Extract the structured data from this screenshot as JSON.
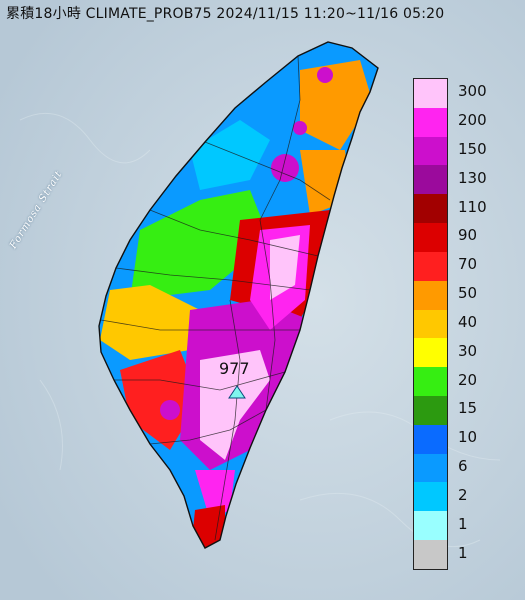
{
  "title": "累積18小時 CLIMATE_PROB75 2024/11/15 11:20~11/16 05:20",
  "strait_label": "Formosa Strait",
  "max_station": {
    "value": "977",
    "marker": "triangle-icon",
    "marker_color": "#7ff5ee"
  },
  "legend": [
    {
      "label": "300",
      "color": "#ffc4fa"
    },
    {
      "label": "200",
      "color": "#ff24f0"
    },
    {
      "label": "150",
      "color": "#cc0fcc"
    },
    {
      "label": "130",
      "color": "#9b0a9c"
    },
    {
      "label": "110",
      "color": "#a20000"
    },
    {
      "label": "90",
      "color": "#dc0000"
    },
    {
      "label": "70",
      "color": "#ff1f1f"
    },
    {
      "label": "50",
      "color": "#ff9a00"
    },
    {
      "label": "40",
      "color": "#ffc800"
    },
    {
      "label": "30",
      "color": "#ffff00"
    },
    {
      "label": "20",
      "color": "#36ee12"
    },
    {
      "label": "15",
      "color": "#2c9a10"
    },
    {
      "label": "10",
      "color": "#0a6bff"
    },
    {
      "label": "6",
      "color": "#0a9aff"
    },
    {
      "label": "2",
      "color": "#00c8ff"
    },
    {
      "label": "1",
      "color": "#99ffff"
    },
    {
      "label": "",
      "color": "#c8c8c8"
    }
  ],
  "legend_bottom_label": "1"
}
